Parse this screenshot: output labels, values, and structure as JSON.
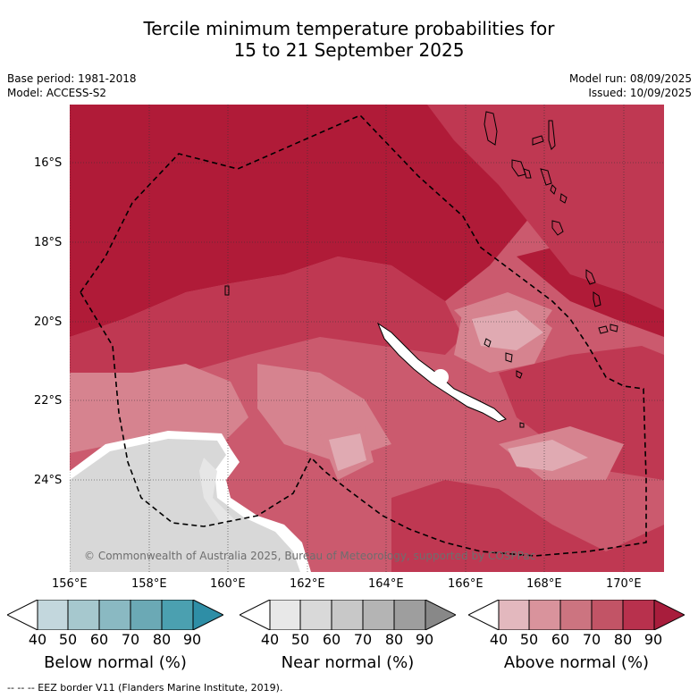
{
  "title": {
    "line1": "Tercile minimum temperature probabilities for",
    "line2": "15 to 21 September 2025"
  },
  "meta": {
    "base_period": "Base period: 1981-2018",
    "model": "Model: ACCESS-S2",
    "model_run": "Model run: 08/09/2025",
    "issued": "Issued: 10/09/2025"
  },
  "map": {
    "lat_ticks": [
      "16°S",
      "18°S",
      "20°S",
      "22°S",
      "24°S"
    ],
    "lon_ticks": [
      "156°E",
      "158°E",
      "160°E",
      "162°E",
      "164°E",
      "166°E",
      "168°E",
      "170°E"
    ],
    "copyright": "© Commonwealth of Australia 2025, Bureau of Meteorology, supported by COSPPac",
    "colors": {
      "above_90": "#b01b38",
      "above_80": "#bf3852",
      "above_70": "#cb5a6e",
      "above_60": "#d6838f",
      "above_50": "#e0aab2",
      "near": "#d8d8d8",
      "near_light": "#e6e6e6",
      "land": "#ffffff"
    }
  },
  "colorbars": [
    {
      "label": "Below normal (%)",
      "ticks": [
        "40",
        "50",
        "60",
        "70",
        "80",
        "90"
      ],
      "colors": [
        "#ffffff",
        "#c3d7dd",
        "#a6c8ce",
        "#8ab9c2",
        "#6ba9b5",
        "#4ba0b0",
        "#2e8ea6"
      ]
    },
    {
      "label": "Near normal (%)",
      "ticks": [
        "40",
        "50",
        "60",
        "70",
        "80",
        "90"
      ],
      "colors": [
        "#ffffff",
        "#e8e8e8",
        "#d9d9d9",
        "#c8c8c8",
        "#b4b4b4",
        "#9e9e9e",
        "#888888"
      ]
    },
    {
      "label": "Above normal (%)",
      "ticks": [
        "40",
        "50",
        "60",
        "70",
        "80",
        "90"
      ],
      "colors": [
        "#ffffff",
        "#e3b8be",
        "#d9939c",
        "#cc7480",
        "#c25466",
        "#b8314d",
        "#a81d3c"
      ]
    }
  ],
  "footer": "--  --  -- EEZ border V11 (Flanders Marine Institute, 2019)."
}
